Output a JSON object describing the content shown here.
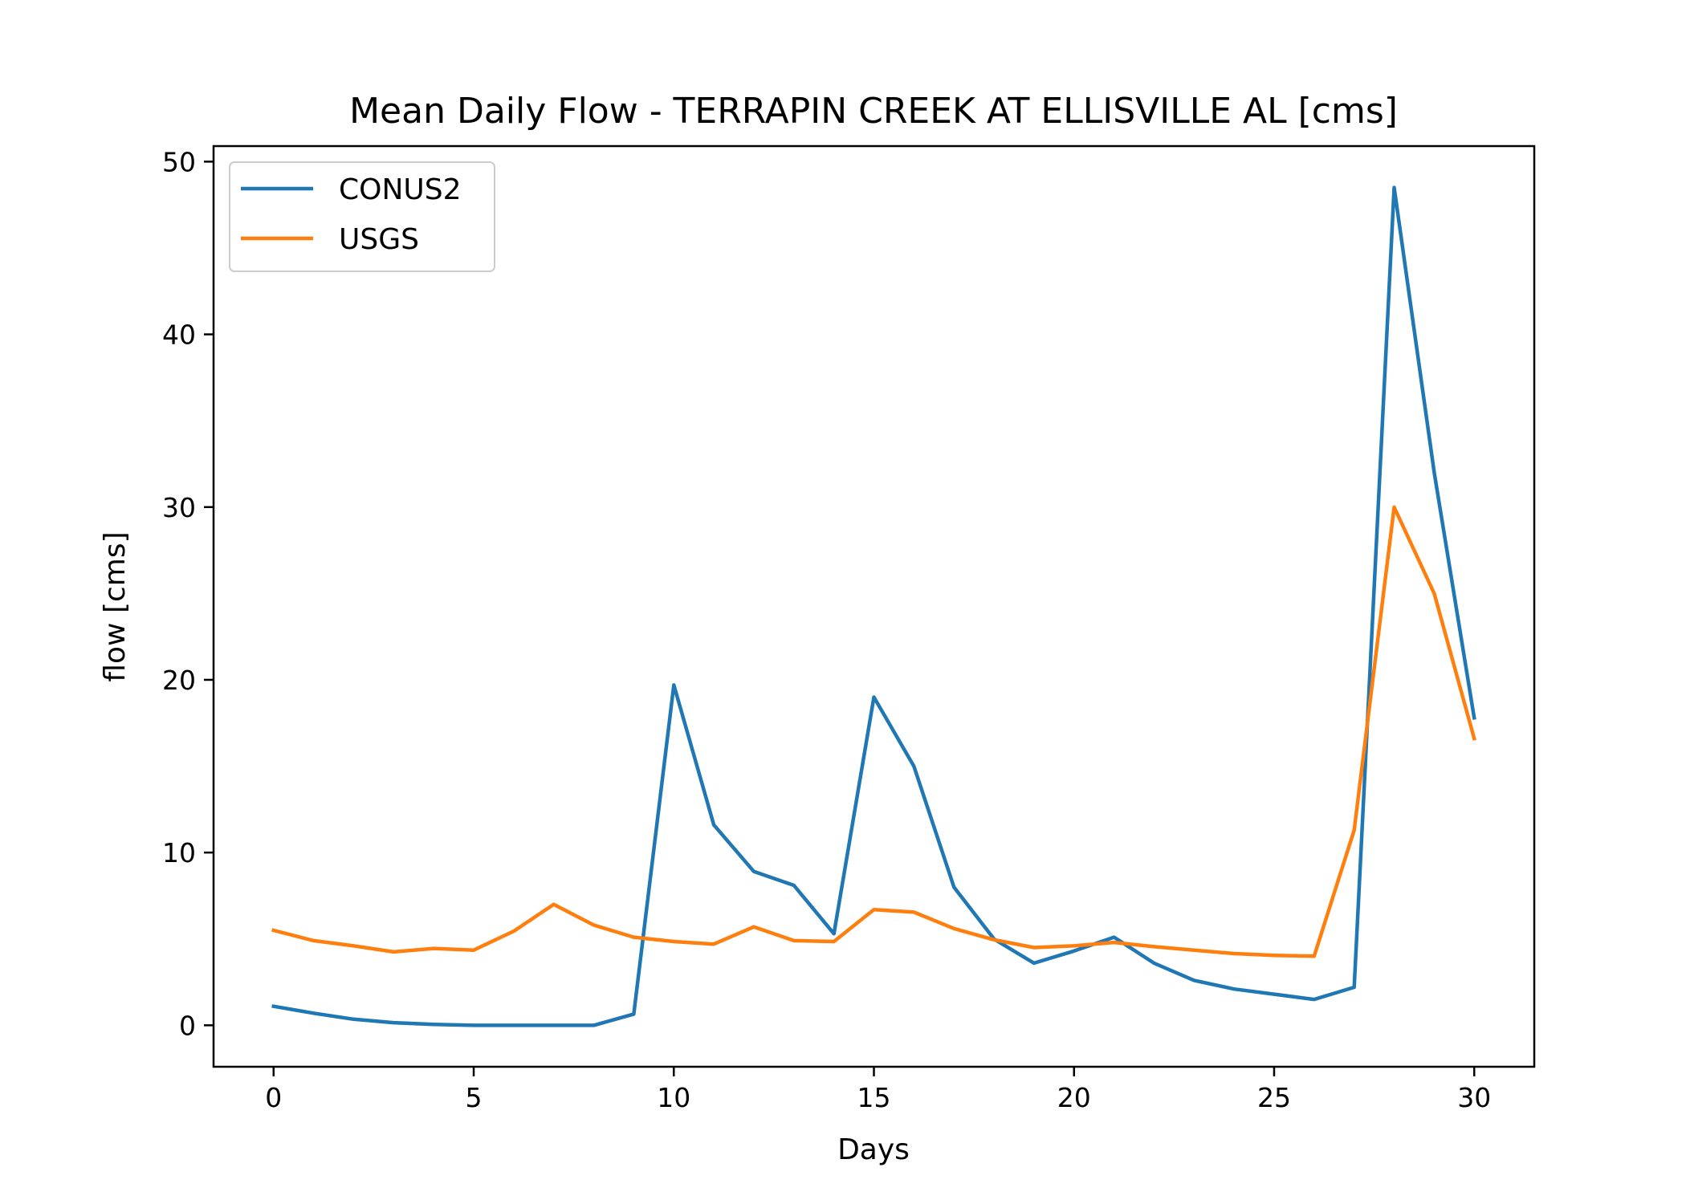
{
  "chart_data": {
    "type": "line",
    "title": "Mean Daily Flow - TERRAPIN CREEK AT ELLISVILLE AL [cms]",
    "xlabel": "Days",
    "ylabel": "flow [cms]",
    "xlim": [
      -1.5,
      31.5
    ],
    "ylim": [
      -2.4,
      50.9
    ],
    "xticks": [
      0,
      5,
      10,
      15,
      20,
      25,
      30
    ],
    "xtick_labels": [
      "0",
      "5",
      "10",
      "15",
      "20",
      "25",
      "30"
    ],
    "yticks": [
      0,
      10,
      20,
      30,
      40,
      50
    ],
    "ytick_labels": [
      "0",
      "10",
      "20",
      "30",
      "40",
      "50"
    ],
    "grid": false,
    "legend_position": "upper-left",
    "x": [
      0,
      1,
      2,
      3,
      4,
      5,
      6,
      7,
      8,
      9,
      10,
      11,
      12,
      13,
      14,
      15,
      16,
      17,
      18,
      19,
      20,
      21,
      22,
      23,
      24,
      25,
      26,
      27,
      28,
      29,
      30
    ],
    "series": [
      {
        "name": "CONUS2",
        "color": "#1f77b4",
        "values": [
          1.1,
          0.7,
          0.35,
          0.15,
          0.05,
          0.0,
          0.0,
          0.0,
          0.0,
          0.65,
          19.7,
          11.6,
          8.9,
          8.1,
          5.3,
          19.0,
          15.0,
          8.0,
          5.0,
          3.6,
          4.3,
          5.1,
          3.6,
          2.6,
          2.1,
          1.8,
          1.5,
          2.2,
          48.5,
          32.0,
          17.8
        ]
      },
      {
        "name": "USGS",
        "color": "#ff7f0e",
        "values": [
          5.5,
          4.9,
          4.6,
          4.25,
          4.45,
          4.35,
          5.45,
          7.0,
          5.8,
          5.1,
          4.85,
          4.7,
          5.7,
          4.9,
          4.85,
          6.7,
          6.55,
          5.6,
          4.95,
          4.5,
          4.6,
          4.8,
          4.55,
          4.35,
          4.15,
          4.05,
          4.0,
          11.3,
          30.0,
          25.0,
          16.6
        ]
      }
    ]
  }
}
